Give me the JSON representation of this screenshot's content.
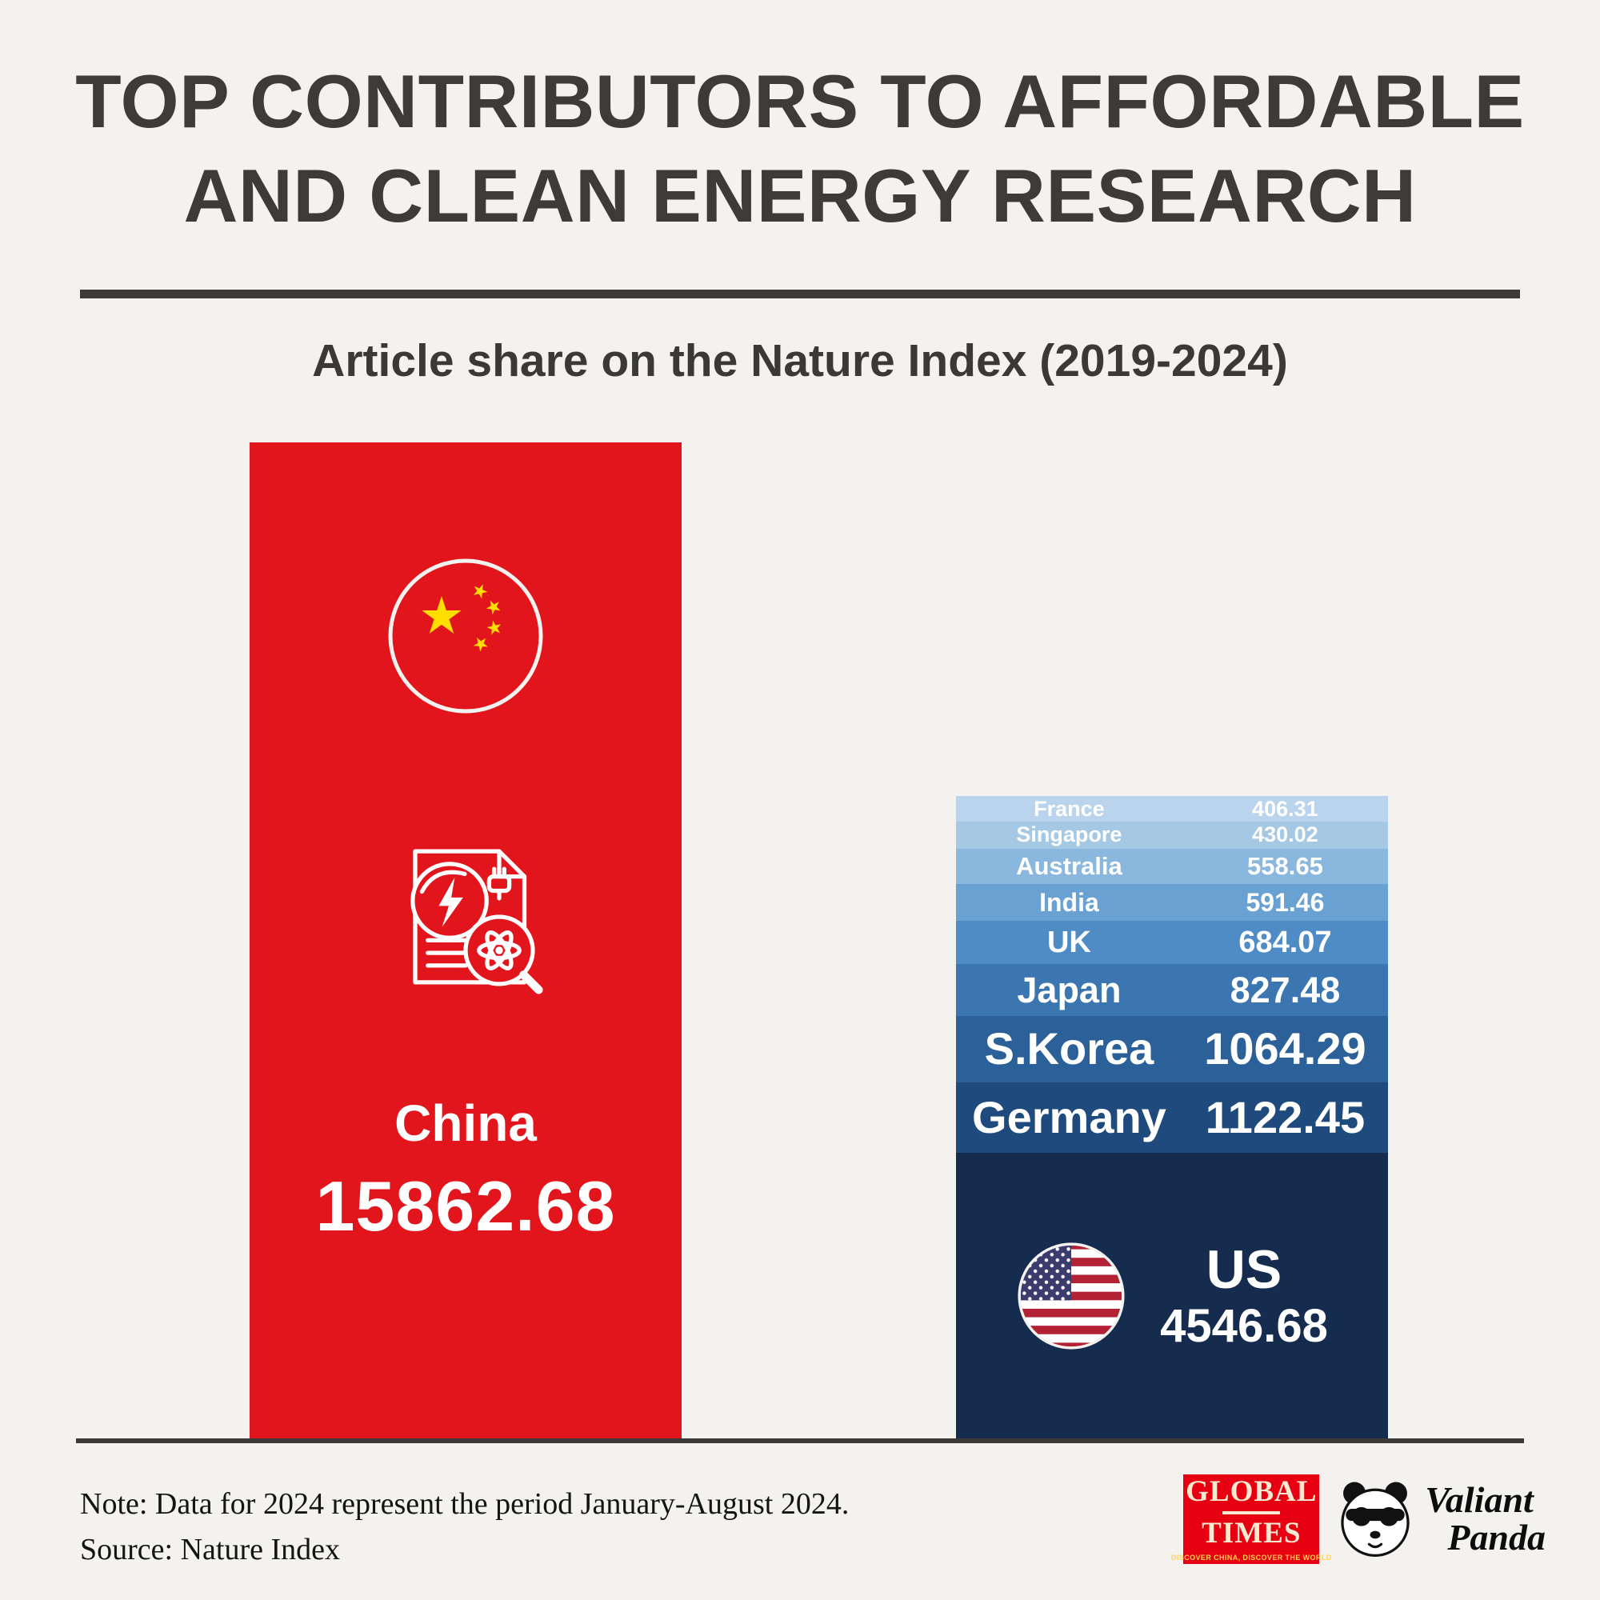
{
  "header": {
    "title_line1": "TOP CONTRIBUTORS TO AFFORDABLE",
    "title_line2": "AND CLEAN ENERGY RESEARCH",
    "subtitle": "Article share on the Nature Index (2019-2024)"
  },
  "chart_data": {
    "type": "bar",
    "title": "Top contributors to affordable and clean energy research",
    "subtitle": "Article share on the Nature Index (2019-2024)",
    "value_unit": "Nature Index article share",
    "layout": "Two bottom-aligned bars: China as a single red bar; other countries stacked (smallest on top) in a blue gradient bar",
    "categories": [
      "China",
      "France",
      "Singapore",
      "Australia",
      "India",
      "UK",
      "Japan",
      "S.Korea",
      "Germany",
      "US"
    ],
    "values": [
      15862.68,
      406.31,
      430.02,
      558.65,
      591.46,
      684.07,
      827.48,
      1064.29,
      1122.45,
      4546.68
    ],
    "china": {
      "label": "China",
      "value": 15862.68,
      "color": "#e2151c"
    },
    "stack": [
      {
        "label": "France",
        "value": 406.31,
        "color": "#b9d4ec"
      },
      {
        "label": "Singapore",
        "value": 430.02,
        "color": "#a5c8e5"
      },
      {
        "label": "Australia",
        "value": 558.65,
        "color": "#8ab7de"
      },
      {
        "label": "India",
        "value": 591.46,
        "color": "#6aa1d3"
      },
      {
        "label": "UK",
        "value": 684.07,
        "color": "#4f8bc4"
      },
      {
        "label": "Japan",
        "value": 827.48,
        "color": "#3c76b0"
      },
      {
        "label": "S.Korea",
        "value": 1064.29,
        "color": "#2c6098"
      },
      {
        "label": "Germany",
        "value": 1122.45,
        "color": "#1e4a7e"
      },
      {
        "label": "US",
        "value": 4546.68,
        "color": "#152c4f",
        "flag": "us"
      }
    ]
  },
  "footer": {
    "note": "Note: Data for 2024 represent the period January-August 2024.",
    "source": "Source: Nature Index",
    "global_times": {
      "line1": "GLOBAL",
      "line2": "TIMES",
      "tagline": "DISCOVER CHINA, DISCOVER THE WORLD",
      "color": "#e60012"
    },
    "valiant_panda": {
      "line1": "Valiant",
      "line2": "Panda"
    }
  }
}
